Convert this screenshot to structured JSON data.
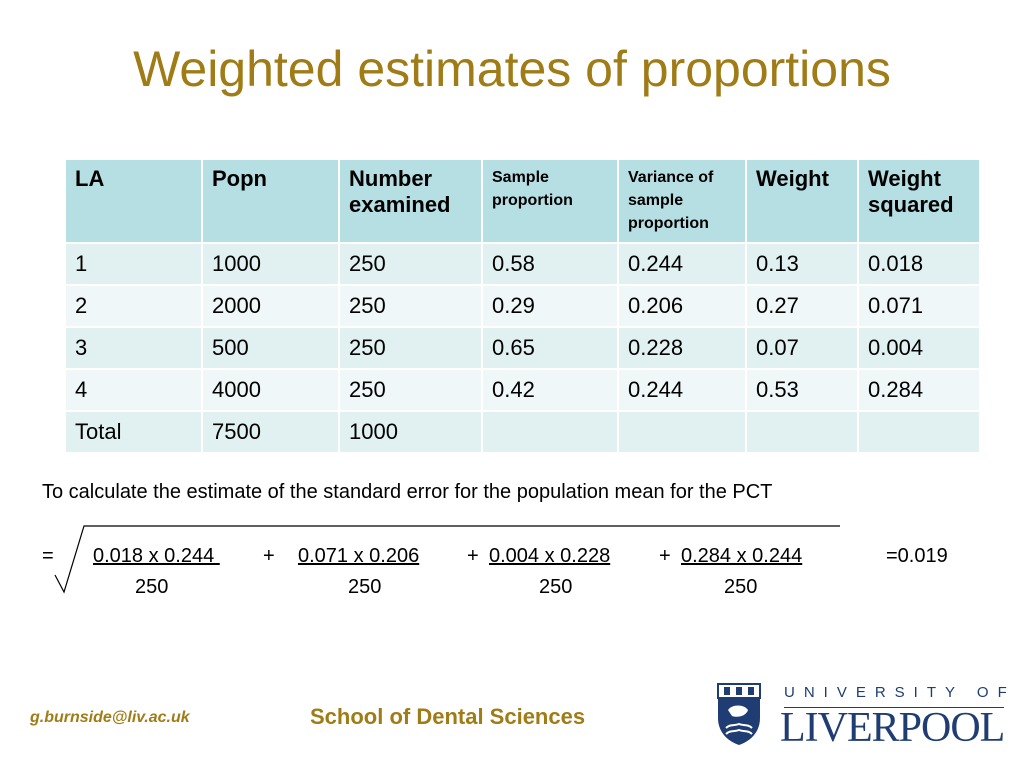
{
  "slide": {
    "title": "Weighted estimates of proportions"
  },
  "table": {
    "headers": [
      "LA",
      "Popn",
      "Number examined",
      "Sample proportion",
      "Variance of sample proportion",
      "Weight",
      "Weight squared"
    ],
    "rows": [
      [
        "1",
        "1000",
        "250",
        "0.58",
        "0.244",
        "0.13",
        "0.018"
      ],
      [
        "2",
        "2000",
        "250",
        "0.29",
        "0.206",
        "0.27",
        "0.071"
      ],
      [
        "3",
        "500",
        "250",
        "0.65",
        "0.228",
        "0.07",
        "0.004"
      ],
      [
        "4",
        "4000",
        "250",
        "0.42",
        "0.244",
        "0.53",
        "0.284"
      ],
      [
        "Total",
        "7500",
        "1000",
        "",
        "",
        "",
        ""
      ]
    ],
    "header_color": "#b6dfe3",
    "row_colors": [
      "#e1f0f1",
      "#f0f7f8"
    ]
  },
  "formula": {
    "intro": "To calculate the estimate of the standard error for the population mean for the PCT",
    "equals": "=",
    "terms": [
      "0.018 x 0.244 ",
      "0.071 x 0.206",
      "0.004 x 0.228",
      "0.284 x 0.244"
    ],
    "operators": [
      "+",
      "+",
      "+"
    ],
    "denominators": [
      "250",
      "250",
      "250",
      "250"
    ],
    "result": "=0.019"
  },
  "footer": {
    "email": "g.burnside@liv.ac.uk",
    "school": "School of Dental Sciences",
    "logo_top": "UNIVERSITY OF",
    "logo_bottom": "LIVERPOOL",
    "accent_color": "#a07c16",
    "logo_color": "#1f3d73"
  }
}
